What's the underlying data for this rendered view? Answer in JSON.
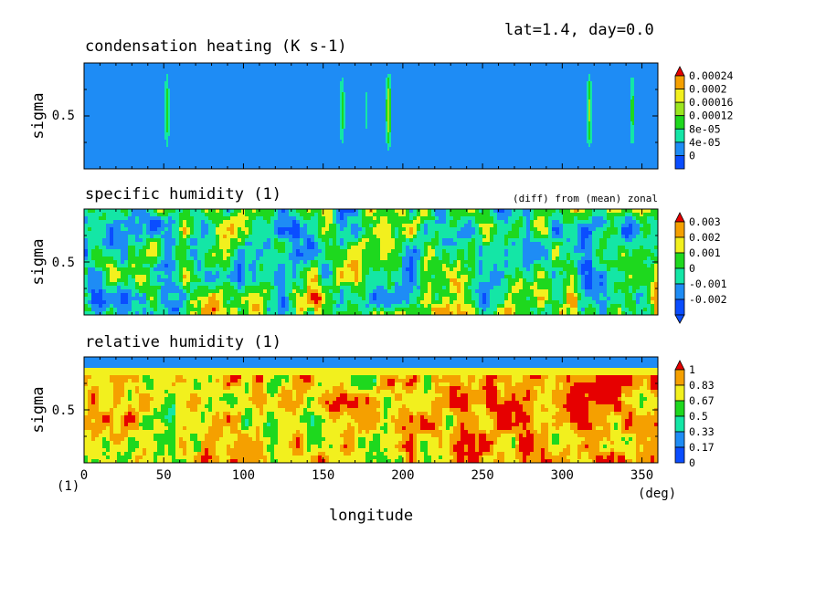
{
  "figure_header": "lat=1.4, day=0.0",
  "x_axis": {
    "label": "longitude",
    "units": "(deg)",
    "corner_label": "(1)",
    "ticks": [
      0,
      50,
      100,
      150,
      200,
      250,
      300,
      350
    ],
    "range": [
      0,
      360
    ]
  },
  "y_axis": {
    "label": "sigma",
    "tick": "0.5",
    "range": [
      0,
      1
    ]
  },
  "colors": {
    "blue": "#0a4dff",
    "medblue": "#1e8cf5",
    "cyan": "#14e6a6",
    "green": "#1ed81e",
    "lightgreen": "#9be61e",
    "yellow": "#f2f01e",
    "orange": "#f5a000",
    "red": "#e60000"
  },
  "chart_data": [
    {
      "type": "heatmap",
      "title": "condensation heating (K s-1)",
      "note": "",
      "colorbar_levels": [
        "0.00024",
        "0.0002",
        "0.00016",
        "0.00012",
        "8e-05",
        "4e-05",
        "0"
      ],
      "colorbar_colors": [
        "red",
        "orange",
        "yellow",
        "lightgreen",
        "green",
        "cyan",
        "medblue",
        "blue"
      ],
      "features": [
        {
          "lon": 52,
          "max": 0.00011
        },
        {
          "lon": 162,
          "max": 0.0001
        },
        {
          "lon": 177,
          "max": 5e-05
        },
        {
          "lon": 191,
          "max": 0.00016
        },
        {
          "lon": 317,
          "max": 0.00013
        },
        {
          "lon": 344,
          "max": 0.0001
        }
      ]
    },
    {
      "type": "heatmap",
      "title": "specific humidity (1)",
      "note": "(diff) from (mean) zonal",
      "colorbar_levels": [
        "0.003",
        "0.002",
        "0.001",
        "0",
        "-0.001",
        "-0.002"
      ],
      "colorbar_colors": [
        "red",
        "orange",
        "yellow",
        "green",
        "cyan",
        "medblue",
        "blue"
      ],
      "range": [
        -0.003,
        0.004
      ]
    },
    {
      "type": "heatmap",
      "title": "relative humidity (1)",
      "note": "",
      "colorbar_levels": [
        "1",
        "0.83",
        "0.67",
        "0.5",
        "0.33",
        "0.17",
        "0"
      ],
      "colorbar_colors": [
        "red",
        "orange",
        "yellow",
        "green",
        "cyan",
        "medblue",
        "blue"
      ],
      "range": [
        0,
        1.05
      ]
    }
  ]
}
